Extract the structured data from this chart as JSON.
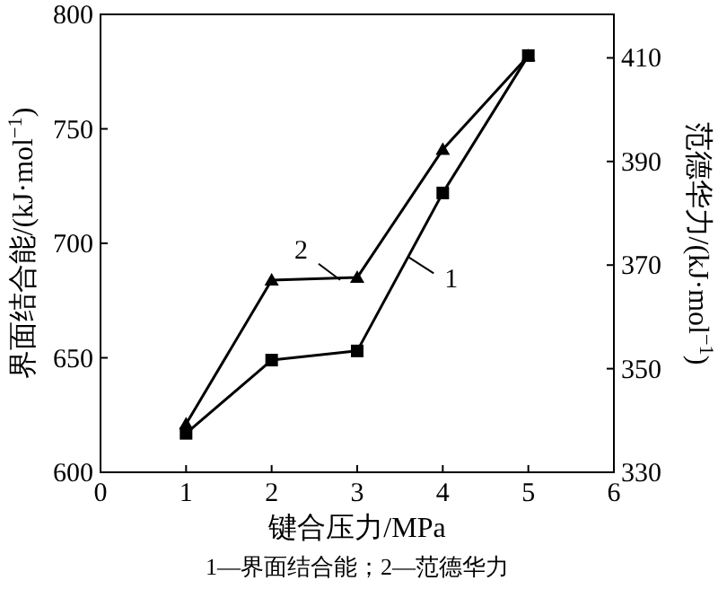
{
  "chart_data": {
    "type": "line",
    "xlabel": "键合压力/MPa",
    "ylabel": "界面结合能/(kJ·mol$^{−1}$)",
    "y2label": "范德华力/(kJ·mol$^{−1}$)",
    "x": [
      1,
      2,
      3,
      4,
      5
    ],
    "xlim": [
      0,
      6
    ],
    "xticks": [
      0,
      1,
      2,
      3,
      4,
      5,
      6
    ],
    "ylim": [
      600,
      800
    ],
    "yticks": [
      600,
      650,
      700,
      750,
      800
    ],
    "y2lim": [
      330,
      418.4
    ],
    "y2ticks": [
      330,
      350,
      370,
      390,
      410
    ],
    "series": [
      {
        "color": "#000000",
        "marker": "square",
        "values": [
          617,
          649,
          653,
          722,
          782
        ]
      },
      {
        "color": "#000000",
        "marker": "triangle",
        "axis": "y2",
        "values": [
          339.3,
          367.1,
          367.6,
          392.3,
          410.4
        ]
      }
    ],
    "annotations": [
      {
        "text": "1",
        "x": 3.6,
        "y": 694
      },
      {
        "text": "2",
        "x": 2.8,
        "y": 684
      },
      "1—界面结合能；2—范德华力"
    ],
    "line_style": "solid",
    "grid": false
  }
}
